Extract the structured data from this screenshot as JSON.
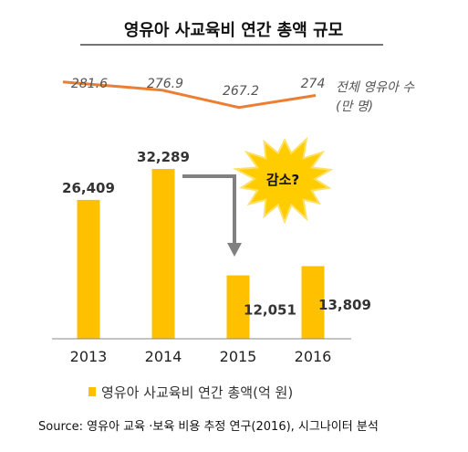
{
  "chart_data": {
    "type": "bar",
    "title": "영유아 사교육비 연간 총액 규모",
    "categories": [
      "2013",
      "2014",
      "2015",
      "2016"
    ],
    "series": [
      {
        "name": "영유아 사교육비 연간 총액(억 원)",
        "values": [
          26409,
          32289,
          12051,
          13809
        ],
        "labels": [
          "26,409",
          "32,289",
          "12,051",
          "13,809"
        ],
        "color": "#FFC000"
      },
      {
        "name": "전체 영유아 수 (만 명)",
        "type": "line",
        "values": [
          281.6,
          276.9,
          267.2,
          274
        ],
        "labels": [
          "281.6",
          "276.9",
          "267.2",
          "274"
        ],
        "color": "#ED7D31"
      }
    ],
    "line_label_lines": [
      "전체 영유아 수",
      "(만 명)"
    ],
    "annotation": "감소?",
    "legend_position": "bottom",
    "grid": false
  },
  "source": "Source: 영유아 교육 ·보육 비용 추정 연구(2016), 시그나이터 분석",
  "colors": {
    "bar": "#FFC000",
    "line": "#ED7D31",
    "arrow": "#808080",
    "burst_fill": "#FFCC00",
    "burst_stroke": "#FFE066",
    "axis": "#888888"
  }
}
